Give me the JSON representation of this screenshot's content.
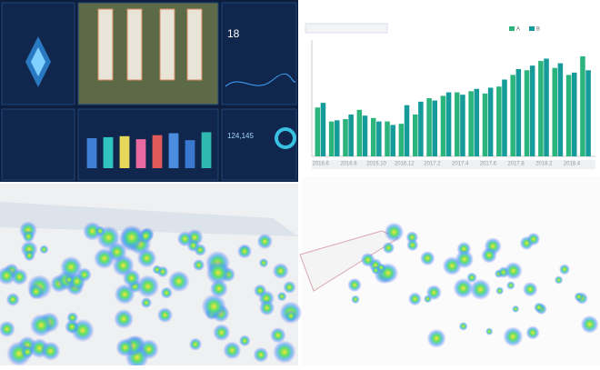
{
  "dashboard": {
    "temperature": "18",
    "count": "124,145"
  },
  "chart_data": [
    {
      "type": "bar",
      "categories": [
        "2016.6",
        null,
        "2016.8",
        null,
        "2016.10",
        null,
        "2016.12",
        null,
        "2017.2",
        null,
        "2017.4",
        null,
        "2017.6",
        null,
        "2017.8",
        null,
        "2018.2",
        null,
        "2018.4",
        null
      ],
      "series": [
        {
          "name": "A",
          "color": "#2bb57c",
          "values": [
            42,
            30,
            32,
            40,
            33,
            30,
            28,
            36,
            50,
            52,
            55,
            56,
            54,
            60,
            70,
            74,
            82,
            76,
            70,
            86
          ]
        },
        {
          "name": "B",
          "color": "#159c9a",
          "values": [
            46,
            31,
            36,
            35,
            30,
            27,
            44,
            47,
            48,
            55,
            53,
            58,
            59,
            66,
            75,
            78,
            84,
            80,
            72,
            74
          ]
        }
      ],
      "ylim": [
        0,
        100
      ]
    },
    {
      "type": "column",
      "categories": [
        null,
        null,
        null,
        null,
        null,
        null,
        null,
        null
      ],
      "values": [
        60,
        62,
        64,
        58,
        66,
        70,
        56,
        72
      ],
      "colors": [
        "#3f7fd6",
        "#2fc4c0",
        "#e6d65a",
        "#e86aa0",
        "#e05a5a",
        "#4a8de0",
        "#3a78cf",
        "#2fb8b0"
      ],
      "ylim": [
        0,
        100
      ]
    }
  ]
}
